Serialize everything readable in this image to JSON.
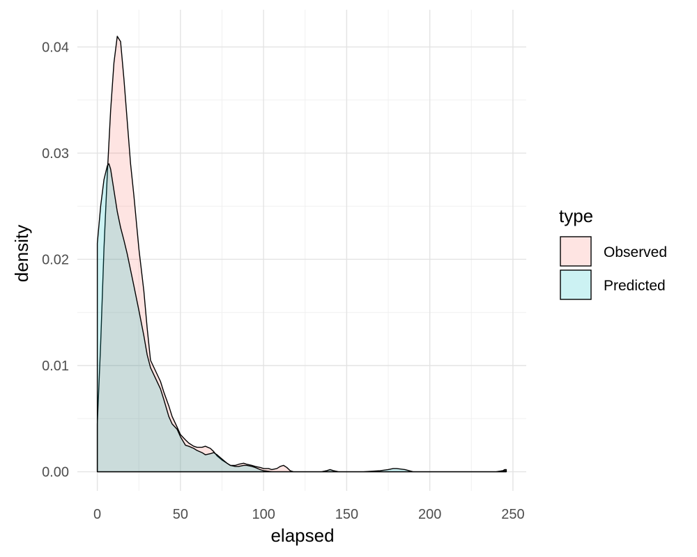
{
  "chart_data": {
    "type": "area",
    "xlabel": "elapsed",
    "ylabel": "density",
    "xlim": [
      -12,
      258
    ],
    "ylim": [
      -0.0018,
      0.0435
    ],
    "x_ticks": [
      {
        "value": 0,
        "label": "0"
      },
      {
        "value": 50,
        "label": "50"
      },
      {
        "value": 100,
        "label": "100"
      },
      {
        "value": 150,
        "label": "150"
      },
      {
        "value": 200,
        "label": "200"
      },
      {
        "value": 250,
        "label": "250"
      }
    ],
    "y_ticks": [
      {
        "value": 0.0,
        "label": "0.00"
      },
      {
        "value": 0.01,
        "label": "0.01"
      },
      {
        "value": 0.02,
        "label": "0.02"
      },
      {
        "value": 0.03,
        "label": "0.03"
      },
      {
        "value": 0.04,
        "label": "0.04"
      }
    ],
    "grid": true,
    "legend": {
      "title": "type",
      "position": "right"
    },
    "series": [
      {
        "name": "Observed",
        "fill": "#F8766D",
        "x": [
          0,
          2,
          4,
          6,
          8,
          10,
          12,
          14,
          16,
          18,
          20,
          22,
          25,
          28,
          30,
          32,
          35,
          38,
          40,
          43,
          45,
          48,
          50,
          53,
          55,
          58,
          60,
          63,
          65,
          68,
          70,
          72,
          75,
          78,
          80,
          83,
          85,
          88,
          90,
          93,
          95,
          98,
          100,
          103,
          105,
          108,
          110,
          112,
          114,
          116,
          118,
          120,
          130,
          135,
          138,
          140,
          142,
          145,
          150,
          170,
          175,
          178,
          180,
          185,
          190,
          200,
          210,
          220,
          230,
          240,
          244,
          245,
          246
        ],
        "y": [
          0.0045,
          0.012,
          0.021,
          0.028,
          0.034,
          0.0385,
          0.041,
          0.0405,
          0.037,
          0.033,
          0.029,
          0.026,
          0.021,
          0.017,
          0.0135,
          0.0105,
          0.0095,
          0.0085,
          0.0075,
          0.0062,
          0.0052,
          0.0042,
          0.0035,
          0.003,
          0.0027,
          0.0024,
          0.0023,
          0.0023,
          0.0024,
          0.0022,
          0.0019,
          0.0015,
          0.0011,
          0.0008,
          0.0006,
          0.0006,
          0.0007,
          0.0008,
          0.0007,
          0.0006,
          0.0005,
          0.0004,
          0.0003,
          0.0003,
          0.0002,
          0.0003,
          0.0005,
          0.0006,
          0.0004,
          0.0001,
          0.0,
          0.0,
          0.0,
          0.0,
          0.0001,
          0.0002,
          0.0001,
          0.0,
          0.0,
          0.0,
          0.0,
          0.0,
          0.0,
          0.0,
          0.0,
          0.0,
          0.0,
          0.0,
          0.0,
          0.0,
          0.0001,
          0.0002,
          0.0002
        ]
      },
      {
        "name": "Predicted",
        "fill": "#00BFC4",
        "x": [
          0,
          2,
          4,
          6,
          7,
          8,
          10,
          12,
          14,
          16,
          18,
          20,
          22,
          25,
          28,
          30,
          32,
          35,
          38,
          40,
          43,
          45,
          48,
          50,
          53,
          55,
          58,
          60,
          63,
          65,
          68,
          70,
          72,
          75,
          78,
          80,
          83,
          85,
          88,
          90,
          93,
          95,
          98,
          100,
          105,
          110,
          120,
          130,
          135,
          138,
          140,
          142,
          145,
          150,
          160,
          170,
          175,
          178,
          180,
          185,
          190,
          200,
          210,
          220,
          230,
          240,
          244,
          245,
          246
        ],
        "y": [
          0.0215,
          0.025,
          0.0275,
          0.0288,
          0.029,
          0.0285,
          0.0265,
          0.0245,
          0.023,
          0.0218,
          0.0205,
          0.019,
          0.0175,
          0.0152,
          0.0128,
          0.011,
          0.0098,
          0.0088,
          0.0078,
          0.0068,
          0.0052,
          0.0045,
          0.004,
          0.0033,
          0.0025,
          0.0024,
          0.0022,
          0.002,
          0.0018,
          0.0016,
          0.0017,
          0.0018,
          0.0016,
          0.0012,
          0.0008,
          0.0006,
          0.0005,
          0.0005,
          0.0006,
          0.0006,
          0.0005,
          0.0004,
          0.0002,
          0.0001,
          0.0,
          0.0,
          0.0,
          0.0,
          0.0,
          0.0001,
          0.0002,
          0.0001,
          0.0,
          0.0,
          0.0,
          0.0001,
          0.0002,
          0.0003,
          0.0003,
          0.0002,
          0.0,
          0.0,
          0.0,
          0.0,
          0.0,
          0.0,
          0.0001,
          0.0001,
          0.0001
        ]
      }
    ]
  }
}
